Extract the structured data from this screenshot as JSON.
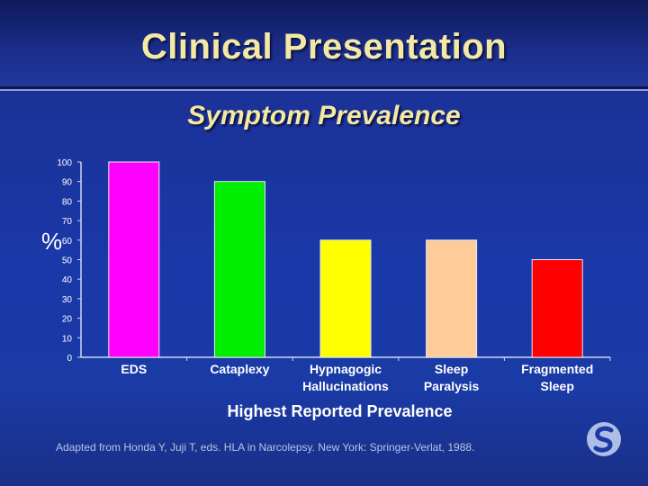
{
  "slide": {
    "title": "Clinical Presentation",
    "source_note": "Adapted from Honda Y, Juji T, eds. HLA in Narcolepsy. New York: Springer-Verlat, 1988."
  },
  "chart_data": {
    "type": "bar",
    "title": "Symptom Prevalence",
    "xlabel": "Highest Reported Prevalence",
    "ylabel": "%",
    "ylim": [
      0,
      100
    ],
    "yticks": [
      0,
      10,
      20,
      30,
      40,
      50,
      60,
      70,
      80,
      90,
      100
    ],
    "grid": false,
    "categories": [
      [
        "EDS"
      ],
      [
        "Cataplexy"
      ],
      [
        "Hypnagogic",
        "Hallucinations"
      ],
      [
        "Sleep",
        "Paralysis"
      ],
      [
        "Fragmented",
        "Sleep"
      ]
    ],
    "values": [
      100,
      90,
      60,
      60,
      50
    ],
    "colors": [
      "#ff00ff",
      "#00ee00",
      "#ffff00",
      "#ffcc99",
      "#ff0000"
    ]
  }
}
